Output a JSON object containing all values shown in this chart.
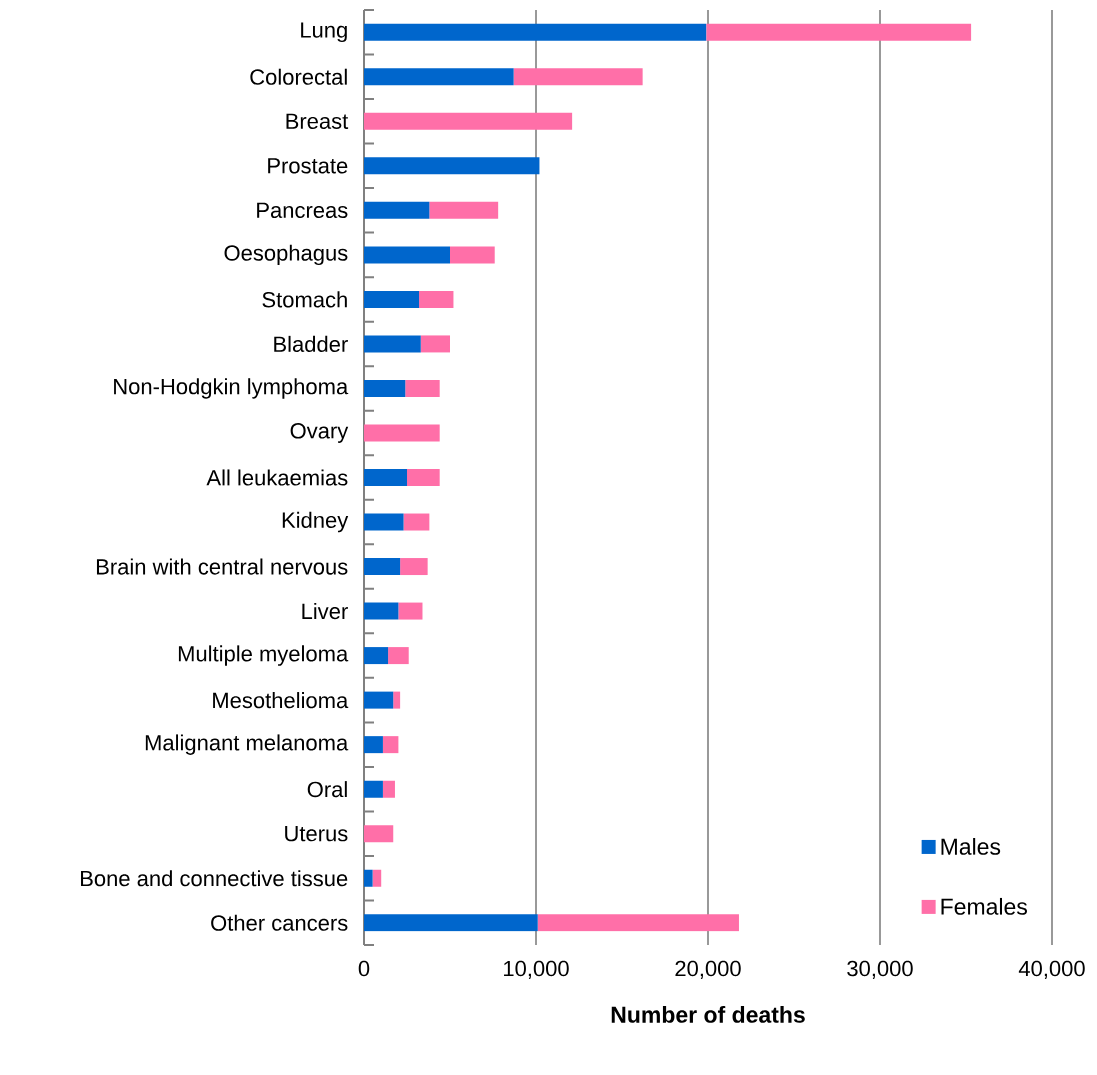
{
  "chart_data": {
    "type": "bar",
    "orientation": "horizontal",
    "stacked": true,
    "xlabel": "Number of deaths",
    "categories": [
      "Lung",
      "Colorectal",
      "Breast",
      "Prostate",
      "Pancreas",
      "Oesophagus",
      "Stomach",
      "Bladder",
      "Non-Hodgkin lymphoma",
      "Ovary",
      "All leukaemias",
      "Kidney",
      "Brain with central nervous",
      "Liver",
      "Multiple myeloma",
      "Mesothelioma",
      "Malignant melanoma",
      "Oral",
      "Uterus",
      "Bone and connective tissue",
      "Other cancers"
    ],
    "series": [
      {
        "name": "Males",
        "color": "#0066cc",
        "values": [
          19900,
          8700,
          null,
          10200,
          3800,
          5000,
          3200,
          3300,
          2400,
          null,
          2500,
          2300,
          2100,
          2000,
          1400,
          1700,
          1100,
          1100,
          null,
          500,
          10100
        ]
      },
      {
        "name": "Females",
        "color": "#ff6fa8",
        "values": [
          15400,
          7500,
          12100,
          null,
          4000,
          2600,
          2000,
          1700,
          2000,
          4400,
          1900,
          1500,
          1600,
          1400,
          1200,
          400,
          900,
          700,
          1700,
          500,
          11700
        ]
      }
    ],
    "xlim": [
      0,
      40000
    ],
    "xticks": [
      0,
      {
        "value": 10000,
        "label": "10,000"
      },
      {
        "value": 20000,
        "label": "20,000"
      },
      {
        "value": 30000,
        "label": "30,000"
      },
      {
        "value": 40000,
        "label": "40,000"
      }
    ],
    "grid": "x",
    "legend": "bottom right"
  }
}
